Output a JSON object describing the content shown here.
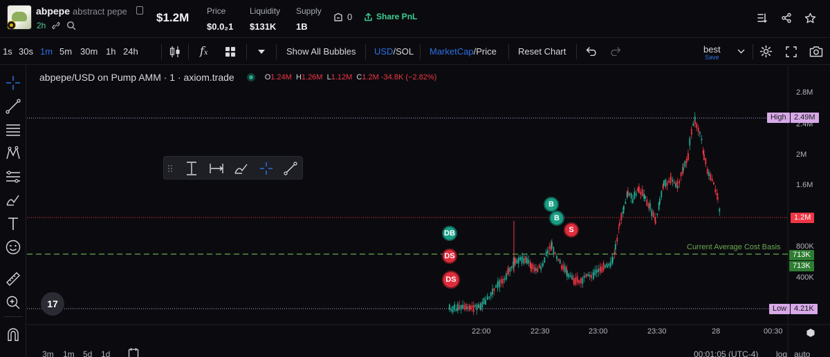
{
  "header": {
    "ticker": "abpepe",
    "token_name": "abstract pepe",
    "age": "2h",
    "market_cap": "$1.2M",
    "price_label": "Price",
    "price_value": "$0.0₂1",
    "liquidity_label": "Liquidity",
    "liquidity_value": "$131K",
    "supply_label": "Supply",
    "supply_value": "1B",
    "gas_count": "0",
    "share_label": "Share PnL"
  },
  "toolbar": {
    "resolutions": [
      "1s",
      "30s",
      "1m",
      "5m",
      "30m",
      "1h",
      "24h"
    ],
    "active_resolution": "1m",
    "show_all_bubbles": "Show All Bubbles",
    "currency_primary": "USD",
    "currency_secondary": "/SOL",
    "metric_primary": "MarketCap",
    "metric_secondary": "/Price",
    "reset_chart": "Reset Chart",
    "layout_name": "best",
    "layout_save": "Save"
  },
  "chart": {
    "legend_title": "abpepe/USD on Pump AMM · 1 · axiom.trade",
    "ohlc": {
      "o": "1.24M",
      "h": "1.26M",
      "l": "1.12M",
      "c": "1.2M",
      "chg": "-34.8K (−2.82%)"
    },
    "high_tag": {
      "label": "High",
      "value": "2.49M"
    },
    "low_tag": {
      "label": "Low",
      "value": "4.21K"
    },
    "current_price_tag": "1.2M",
    "cost_basis_label": "Current Average Cost Basis",
    "cost_basis_tags": [
      "713K",
      "713K"
    ],
    "y_axis_labels": [
      "2.8M",
      "2.4M",
      "2M",
      "1.6M",
      "800K",
      "400K"
    ],
    "x_axis_labels": [
      "22:00",
      "22:30",
      "23:00",
      "23:30",
      "28",
      "00:30"
    ],
    "bubbles": [
      "DB",
      "DS",
      "DS",
      "B",
      "B",
      "S"
    ]
  },
  "bottom": {
    "ranges": [
      "3m",
      "1m",
      "5d",
      "1d"
    ],
    "clock": "00:01:05 (UTC-4)",
    "log": "log",
    "auto": "auto"
  },
  "colors": {
    "up": "#22ab94",
    "down": "#f23645",
    "accent": "#2f6fe4",
    "cost_basis": "#6aa84f",
    "high_low": "#d8a9e8"
  }
}
